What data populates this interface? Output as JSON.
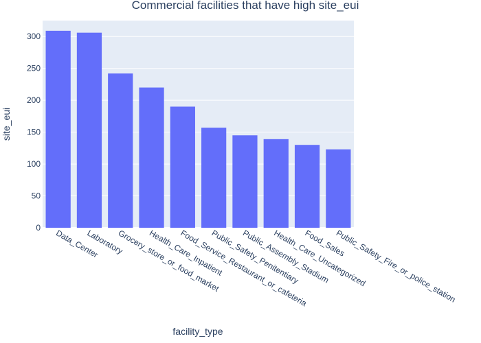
{
  "chart_data": {
    "type": "bar",
    "title": "Commercial facilities that have high site_eui",
    "xlabel": "facility_type",
    "ylabel": "site_eui",
    "categories": [
      "Data_Center",
      "Laboratory",
      "Grocery_store_or_food_market",
      "Health_Care_Inpatient",
      "Food_Service_Restaurant_or_cafeteria",
      "Public_Safety_Penitentiary",
      "Public_Assembly_Stadium",
      "Health_Care_Uncategorized",
      "Food_Sales",
      "Public_Safety_Fire_or_police_station"
    ],
    "values": [
      309,
      306,
      242,
      220,
      190,
      157,
      145,
      139,
      130,
      123
    ],
    "ylim": [
      0,
      325
    ],
    "yticks": [
      0,
      50,
      100,
      150,
      200,
      250,
      300
    ],
    "grid": true,
    "colors": {
      "bar": "#636efa",
      "plot_bg": "#e5ecf6",
      "text": "#2a3f5f"
    }
  }
}
